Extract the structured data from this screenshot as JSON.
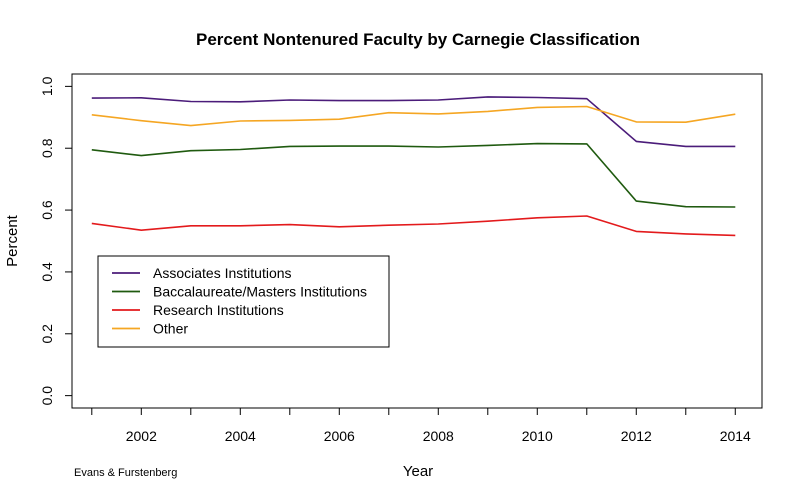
{
  "chart_data": {
    "type": "line",
    "title": "Percent Nontenured Faculty by Carnegie Classification",
    "xlabel": "Year",
    "ylabel": "Percent",
    "credit": "Evans & Furstenberg",
    "x": [
      2001,
      2002,
      2003,
      2004,
      2005,
      2006,
      2007,
      2008,
      2009,
      2010,
      2011,
      2012,
      2013,
      2014
    ],
    "xlim": [
      2000.6,
      2014.54
    ],
    "ylim": [
      -0.04,
      1.04
    ],
    "xticks": [
      2002,
      2004,
      2006,
      2008,
      2010,
      2012,
      2014
    ],
    "yticks": [
      0.0,
      0.2,
      0.4,
      0.6,
      0.8,
      1.0
    ],
    "ytick_labels": [
      "0.0",
      "0.2",
      "0.4",
      "0.6",
      "0.8",
      "1.0"
    ],
    "grid": false,
    "legend_position": "bottom-left",
    "series": [
      {
        "name": "Associates Institutions",
        "color": "#4b1c7a",
        "values": [
          0.962,
          0.963,
          0.951,
          0.95,
          0.956,
          0.954,
          0.954,
          0.956,
          0.966,
          0.964,
          0.96,
          0.822,
          0.806,
          0.806
        ]
      },
      {
        "name": "Baccalaureate/Masters Institutions",
        "color": "#1f5a0f",
        "values": [
          0.795,
          0.776,
          0.792,
          0.796,
          0.806,
          0.807,
          0.807,
          0.804,
          0.809,
          0.815,
          0.814,
          0.629,
          0.611,
          0.61
        ]
      },
      {
        "name": "Research Institutions",
        "color": "#e31a1c",
        "values": [
          0.557,
          0.535,
          0.549,
          0.549,
          0.553,
          0.546,
          0.551,
          0.555,
          0.564,
          0.575,
          0.581,
          0.531,
          0.523,
          0.518
        ]
      },
      {
        "name": "Other",
        "color": "#f5a623",
        "values": [
          0.908,
          0.889,
          0.873,
          0.888,
          0.89,
          0.894,
          0.915,
          0.911,
          0.919,
          0.932,
          0.935,
          0.885,
          0.884,
          0.91
        ]
      }
    ]
  }
}
